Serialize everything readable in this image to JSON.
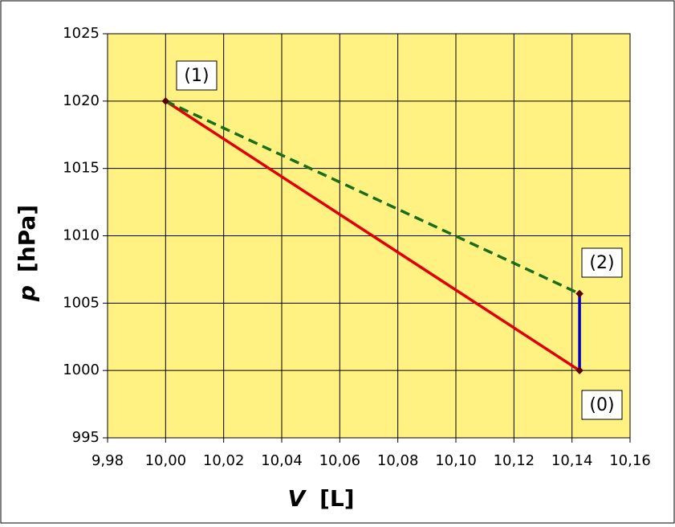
{
  "chart_data": {
    "type": "line",
    "x_label_symbol": "V",
    "x_label_unit": "[L]",
    "y_label_symbol": "p",
    "y_label_unit": "[hPa]",
    "series": [
      {
        "color": "#e00000",
        "dash": false,
        "x": [
          10.0,
          10.1426
        ],
        "values": [
          1020,
          1000
        ]
      },
      {
        "color": "#1a6e1a",
        "dash": true,
        "x": [
          10.0,
          10.1426
        ],
        "values": [
          1020,
          1005.7
        ]
      },
      {
        "color": "#0000c0",
        "dash": false,
        "x": [
          10.1426,
          10.1426
        ],
        "values": [
          1005.7,
          1000
        ]
      }
    ],
    "annotations": [
      "(1)",
      "(2)",
      "(0)"
    ],
    "xlim": [
      9.98,
      10.16
    ],
    "xticks": [
      {
        "value": 9.98,
        "label": "9,98"
      },
      {
        "value": 10.0,
        "label": "10,00"
      },
      {
        "value": 10.02,
        "label": "10,02"
      },
      {
        "value": 10.04,
        "label": "10,04"
      },
      {
        "value": 10.06,
        "label": "10,06"
      },
      {
        "value": 10.08,
        "label": "10,08"
      },
      {
        "value": 10.1,
        "label": "10,10"
      },
      {
        "value": 10.12,
        "label": "10,12"
      },
      {
        "value": 10.14,
        "label": "10,14"
      },
      {
        "value": 10.16,
        "label": "10,16"
      }
    ],
    "ylim": [
      995,
      1025
    ],
    "yticks": [
      995,
      1000,
      1005,
      1010,
      1015,
      1020,
      1025
    ],
    "grid": true,
    "plot_background": "#fff282"
  }
}
